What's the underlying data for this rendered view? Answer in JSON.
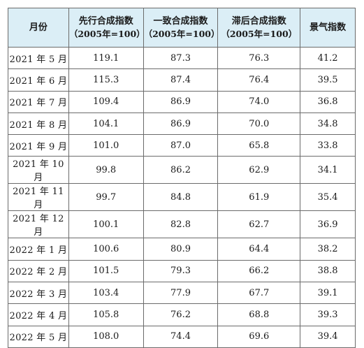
{
  "table": {
    "headers": [
      {
        "line1": "月份",
        "line2": ""
      },
      {
        "line1": "先行合成指数",
        "line2": "（2005年=100）"
      },
      {
        "line1": "一致合成指数",
        "line2": "（2005年=100）"
      },
      {
        "line1": "滞后合成指数",
        "line2": "（2005年=100）"
      },
      {
        "line1": "景气指数",
        "line2": ""
      }
    ],
    "rows": [
      [
        "2021 年 5 月",
        "119.1",
        "87.3",
        "76.3",
        "41.2"
      ],
      [
        "2021 年 6 月",
        "115.3",
        "87.4",
        "76.4",
        "39.5"
      ],
      [
        "2021 年 7 月",
        "109.4",
        "86.9",
        "74.0",
        "36.8"
      ],
      [
        "2021 年 8 月",
        "104.1",
        "86.9",
        "70.0",
        "34.8"
      ],
      [
        "2021 年 9 月",
        "101.0",
        "87.0",
        "65.8",
        "33.8"
      ],
      [
        "2021 年 10 月",
        "99.8",
        "86.2",
        "62.9",
        "34.1"
      ],
      [
        "2021 年 11 月",
        "99.7",
        "84.8",
        "61.9",
        "35.4"
      ],
      [
        "2021 年 12 月",
        "100.1",
        "82.8",
        "62.7",
        "36.9"
      ],
      [
        "2022 年 1 月",
        "100.6",
        "80.9",
        "64.4",
        "38.2"
      ],
      [
        "2022 年 2 月",
        "101.5",
        "79.3",
        "66.2",
        "38.8"
      ],
      [
        "2022 年 3 月",
        "103.4",
        "77.9",
        "67.7",
        "39.1"
      ],
      [
        "2022 年 4 月",
        "105.8",
        "76.2",
        "68.8",
        "39.3"
      ],
      [
        "2022 年 5 月",
        "108.0",
        "74.4",
        "69.6",
        "39.4"
      ]
    ]
  },
  "colors": {
    "header_bg": "#dbeef6",
    "border": "#6b6b6b",
    "text": "#1a1a1a"
  }
}
